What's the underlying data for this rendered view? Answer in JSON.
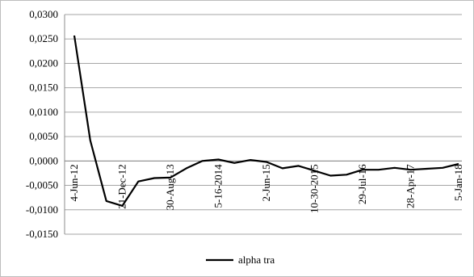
{
  "chart_data": {
    "type": "line",
    "title": "",
    "xlabel": "",
    "ylabel": "",
    "ylim": [
      -0.015,
      0.03
    ],
    "yticks": [
      "0,0300",
      "0,0250",
      "0,0200",
      "0,0150",
      "0,0100",
      "0,0050",
      "0,0000",
      "-0,0050",
      "-0,0100",
      "-0,0150"
    ],
    "xtick_labels": [
      "4-Jun-12",
      "21-Dec-12",
      "30-Aug-13",
      "5-16-2014",
      "2-Jun-15",
      "10-30-2015",
      "29-Jul-16",
      "28-Apr-17",
      "5-Jan-18"
    ],
    "grid": "horizontal",
    "legend_position": "bottom",
    "series": [
      {
        "name": "alpha tra",
        "color": "#000000",
        "values": [
          0.0257,
          0.0042,
          -0.0082,
          -0.0092,
          -0.0042,
          -0.0035,
          -0.0034,
          -0.0015,
          0.0,
          0.0003,
          -0.0004,
          0.0002,
          -0.0002,
          -0.0015,
          -0.001,
          -0.002,
          -0.003,
          -0.0028,
          -0.0018,
          -0.0018,
          -0.0014,
          -0.0018,
          -0.0016,
          -0.0014,
          -0.0006
        ]
      }
    ]
  }
}
